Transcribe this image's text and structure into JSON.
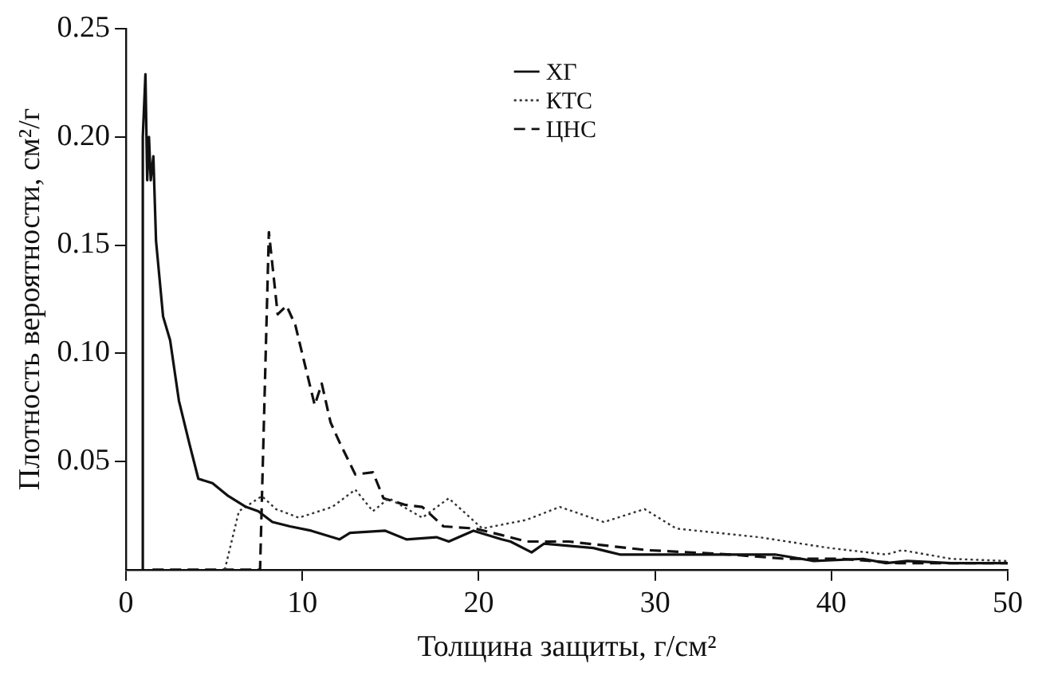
{
  "chart_data": {
    "type": "line",
    "xlabel": "Толщина защиты, г/см²",
    "ylabel": "Плотность вероятности, см²/г",
    "xlim": [
      0,
      50
    ],
    "xticks": [
      0,
      10,
      20,
      30,
      40,
      50
    ],
    "ylim": [
      0,
      0.25
    ],
    "yticks": [
      {
        "value": 0.05,
        "label": "0.05"
      },
      {
        "value": 0.1,
        "label": "0.10"
      },
      {
        "value": 0.15,
        "label": "0.15"
      },
      {
        "value": 0.2,
        "label": "0.20"
      },
      {
        "value": 0.25,
        "label": "0.25"
      }
    ],
    "grid": false,
    "legend": "top right",
    "marker": "none",
    "series": [
      {
        "name": "ХГ",
        "color": "#111111",
        "line_style": "solid",
        "x": [
          0.9,
          0.95,
          1.1,
          1.2,
          1.3,
          1.4,
          1.55,
          1.7,
          2.1,
          2.5,
          3.0,
          3.6,
          4.1,
          4.9,
          5.8,
          6.8,
          7.5,
          8.3,
          9.3,
          10.5,
          12.1,
          12.7,
          14.7,
          15.9,
          17.6,
          18.3,
          19.7,
          21.3,
          21.8,
          23.0,
          23.7,
          26.5,
          28.0,
          31.1,
          34.3,
          36.8,
          39.0,
          41.8,
          43.1,
          44.3,
          46.8,
          50
        ],
        "values": [
          0,
          0.2,
          0.229,
          0.18,
          0.2,
          0.18,
          0.191,
          0.152,
          0.117,
          0.106,
          0.078,
          0.058,
          0.042,
          0.04,
          0.034,
          0.029,
          0.027,
          0.022,
          0.02,
          0.018,
          0.014,
          0.017,
          0.018,
          0.014,
          0.015,
          0.013,
          0.018,
          0.014,
          0.013,
          0.008,
          0.012,
          0.01,
          0.007,
          0.007,
          0.007,
          0.007,
          0.004,
          0.005,
          0.003,
          0.004,
          0.003,
          0.003
        ]
      },
      {
        "name": "КТС",
        "color": "#333333",
        "line_style": "dotted",
        "x": [
          5.6,
          6.4,
          7.7,
          8.5,
          9.8,
          11.7,
          13.0,
          14.0,
          14.9,
          16.8,
          18.3,
          20.2,
          22.7,
          24.6,
          27.1,
          29.4,
          31.2,
          35.9,
          39.9,
          43.1,
          44.0,
          46.8,
          50
        ],
        "values": [
          0,
          0.027,
          0.034,
          0.028,
          0.024,
          0.029,
          0.037,
          0.027,
          0.033,
          0.024,
          0.033,
          0.019,
          0.023,
          0.029,
          0.022,
          0.028,
          0.019,
          0.015,
          0.01,
          0.007,
          0.009,
          0.005,
          0.004
        ]
      },
      {
        "name": "ЦНС",
        "color": "#111111",
        "line_style": "dashed",
        "x": [
          1.5,
          7.6,
          8.1,
          8.6,
          9.1,
          9.6,
          10.7,
          11.1,
          11.6,
          12.1,
          13.0,
          14.0,
          14.6,
          15.8,
          16.8,
          18.0,
          19.8,
          21.3,
          22.7,
          25.1,
          29.6,
          34.3,
          37.4,
          40.6,
          43.8,
          50
        ],
        "values": [
          0,
          0,
          0.156,
          0.118,
          0.122,
          0.113,
          0.076,
          0.086,
          0.068,
          0.059,
          0.044,
          0.045,
          0.033,
          0.03,
          0.029,
          0.02,
          0.019,
          0.016,
          0.013,
          0.013,
          0.009,
          0.007,
          0.005,
          0.005,
          0.003,
          0.003
        ]
      }
    ]
  }
}
